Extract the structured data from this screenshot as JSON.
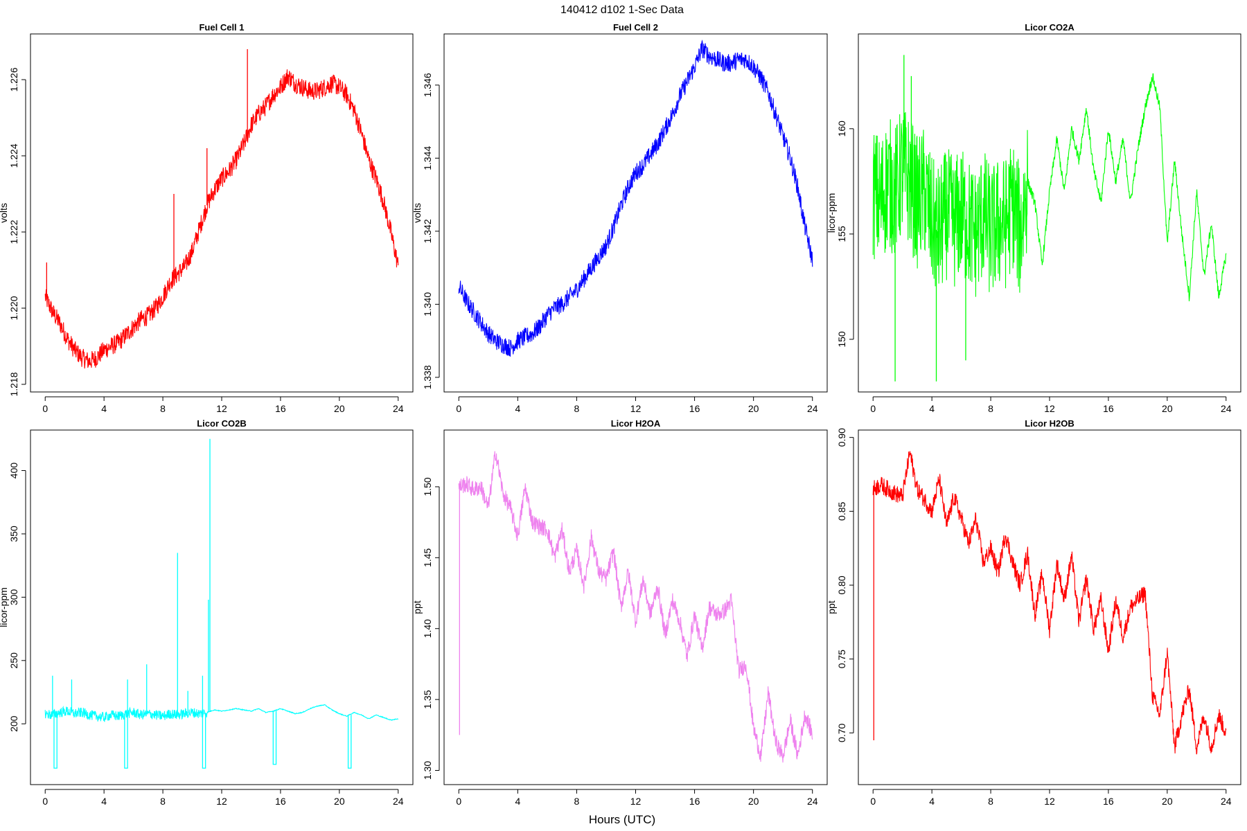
{
  "figure": {
    "title": "140412   d102   1-Sec Data",
    "xlabel": "Hours (UTC)"
  },
  "chart_data": [
    {
      "type": "line",
      "title": "Fuel Cell 1",
      "xlabel": "",
      "ylabel": "volts",
      "color": "#ff0000",
      "xlim": [
        -1,
        25
      ],
      "ylim": [
        1.2178,
        1.2272
      ],
      "x_ticks": [
        0,
        4,
        8,
        12,
        16,
        20,
        24
      ],
      "y_ticks": [
        1.218,
        1.22,
        1.222,
        1.224,
        1.226
      ],
      "y_tick_labels": [
        "1.218",
        "1.220",
        "1.222",
        "1.224",
        "1.226"
      ],
      "noise": 0.00025,
      "x": [
        0,
        0.5,
        1,
        1.5,
        2,
        2.5,
        3,
        3.5,
        4,
        4.5,
        5,
        5.5,
        6,
        6.5,
        7,
        7.5,
        8,
        8.5,
        9,
        9.5,
        10,
        10.5,
        11,
        11.5,
        12,
        12.5,
        13,
        13.5,
        14,
        14.5,
        15,
        15.5,
        16,
        16.5,
        17,
        17.5,
        18,
        18.5,
        19,
        19.5,
        20,
        20.5,
        21,
        21.5,
        22,
        22.5,
        23,
        23.5,
        24
      ],
      "y": [
        1.2203,
        1.2199,
        1.2196,
        1.2192,
        1.2189,
        1.2187,
        1.2186,
        1.2187,
        1.2189,
        1.219,
        1.2191,
        1.2193,
        1.2195,
        1.2197,
        1.2198,
        1.22,
        1.2203,
        1.2207,
        1.2209,
        1.2211,
        1.2215,
        1.2221,
        1.2227,
        1.2231,
        1.2234,
        1.2236,
        1.2239,
        1.2243,
        1.2248,
        1.2251,
        1.2253,
        1.2256,
        1.2258,
        1.2261,
        1.2259,
        1.2258,
        1.2257,
        1.2257,
        1.2258,
        1.2259,
        1.2258,
        1.2256,
        1.2252,
        1.2246,
        1.2239,
        1.2234,
        1.2228,
        1.222,
        1.2211
      ],
      "spikes": [
        [
          0.1,
          1.2212
        ],
        [
          8.75,
          1.223
        ],
        [
          11.0,
          1.2242
        ],
        [
          13.75,
          1.2268
        ]
      ]
    },
    {
      "type": "line",
      "title": "Fuel Cell 2",
      "xlabel": "",
      "ylabel": "volts",
      "color": "#0000ff",
      "xlim": [
        -1,
        25
      ],
      "ylim": [
        1.3376,
        1.3474
      ],
      "x_ticks": [
        0,
        4,
        8,
        12,
        16,
        20,
        24
      ],
      "y_ticks": [
        1.338,
        1.34,
        1.342,
        1.344,
        1.346
      ],
      "y_tick_labels": [
        "1.338",
        "1.340",
        "1.342",
        "1.344",
        "1.346"
      ],
      "noise": 0.00025,
      "x": [
        0,
        0.5,
        1,
        1.5,
        2,
        2.5,
        3,
        3.5,
        4,
        4.5,
        5,
        5.5,
        6,
        6.5,
        7,
        7.5,
        8,
        8.5,
        9,
        9.5,
        10,
        10.5,
        11,
        11.5,
        12,
        12.5,
        13,
        13.5,
        14,
        14.5,
        15,
        15.5,
        16,
        16.5,
        17,
        17.5,
        18,
        18.5,
        19,
        19.5,
        20,
        20.5,
        21,
        21.5,
        22,
        22.5,
        23,
        23.5,
        24
      ],
      "y": [
        1.3405,
        1.3401,
        1.3398,
        1.3395,
        1.3392,
        1.339,
        1.3389,
        1.3388,
        1.339,
        1.3391,
        1.3392,
        1.3394,
        1.3397,
        1.3399,
        1.34,
        1.3402,
        1.3404,
        1.3407,
        1.341,
        1.3413,
        1.3416,
        1.3421,
        1.3427,
        1.3432,
        1.3436,
        1.3438,
        1.3441,
        1.3444,
        1.3448,
        1.3452,
        1.3457,
        1.3461,
        1.3465,
        1.347,
        1.3468,
        1.3467,
        1.3466,
        1.3466,
        1.3467,
        1.3467,
        1.3465,
        1.3462,
        1.3458,
        1.3452,
        1.3446,
        1.344,
        1.3432,
        1.3421,
        1.3412
      ],
      "spikes": []
    },
    {
      "type": "line",
      "title": "Licor CO2A",
      "xlabel": "",
      "ylabel": "licor-ppm",
      "color": "#00ff00",
      "xlim": [
        -1,
        25
      ],
      "ylim": [
        147.5,
        164.5
      ],
      "x_ticks": [
        0,
        4,
        8,
        12,
        16,
        20,
        24
      ],
      "y_ticks": [
        150,
        155,
        160
      ],
      "y_tick_labels": [
        "150",
        "155",
        "160"
      ],
      "x": [
        0,
        0.5,
        1,
        1.5,
        2,
        2.5,
        3,
        3.5,
        4,
        4.5,
        5,
        5.5,
        6,
        6.5,
        7,
        7.5,
        8,
        8.5,
        9,
        9.5,
        10,
        10.5,
        11,
        11.5,
        12,
        12.5,
        13,
        13.5,
        14,
        14.5,
        15,
        15.5,
        16,
        16.5,
        17,
        17.5,
        18,
        18.5,
        19,
        19.5,
        20,
        20.5,
        21,
        21.5,
        22,
        22.5,
        23,
        23.5,
        24
      ],
      "y": [
        157.0,
        156.5,
        157.5,
        157.0,
        158.0,
        157.5,
        156.5,
        157.0,
        155.5,
        155.0,
        156.0,
        155.5,
        156.0,
        155.5,
        155.0,
        156.0,
        155.0,
        155.5,
        155.5,
        156.5,
        155.0,
        157.5,
        156.5,
        153.5,
        157.0,
        159.5,
        157.0,
        160.0,
        158.5,
        161.0,
        158.0,
        156.5,
        160.0,
        157.5,
        159.5,
        156.5,
        159.0,
        161.0,
        162.5,
        161.0,
        154.5,
        158.5,
        155.0,
        152.0,
        157.0,
        153.0,
        155.5,
        152.0,
        154.0
      ],
      "noise_until": 10.5,
      "noise_amp": 3.2,
      "noise_tail": 0.25,
      "spikes": [
        [
          2.1,
          163.5
        ],
        [
          1.5,
          148.0
        ],
        [
          4.3,
          148.0
        ],
        [
          2.6,
          162.5
        ],
        [
          6.3,
          149.0
        ]
      ]
    },
    {
      "type": "line",
      "title": "Licor CO2B",
      "xlabel": "",
      "ylabel": "licor-ppm",
      "color": "#00ffff",
      "xlim": [
        -1,
        25
      ],
      "ylim": [
        152,
        432
      ],
      "x_ticks": [
        0,
        4,
        8,
        12,
        16,
        20,
        24
      ],
      "y_ticks": [
        200,
        250,
        300,
        350,
        400
      ],
      "y_tick_labels": [
        "200",
        "250",
        "300",
        "350",
        "400"
      ],
      "x": [
        0,
        0.5,
        1,
        1.5,
        2,
        2.5,
        3,
        3.5,
        4,
        4.5,
        5,
        5.5,
        6,
        6.5,
        7,
        7.5,
        8,
        8.5,
        9,
        9.5,
        10,
        10.5,
        11,
        11.5,
        12,
        12.5,
        13,
        13.5,
        14,
        14.5,
        15,
        15.5,
        16,
        16.5,
        17,
        17.5,
        18,
        18.5,
        19,
        19.5,
        20,
        20.5,
        21,
        21.5,
        22,
        22.5,
        23,
        23.5,
        24
      ],
      "y": [
        208,
        207,
        209,
        210,
        208,
        209,
        207,
        206,
        205,
        207,
        206,
        208,
        209,
        207,
        208,
        207,
        206,
        208,
        207,
        208,
        209,
        208,
        209,
        211,
        210,
        211,
        212,
        211,
        210,
        212,
        209,
        210,
        212,
        210,
        208,
        209,
        212,
        214,
        215,
        211,
        208,
        206,
        209,
        207,
        204,
        207,
        205,
        203,
        204
      ],
      "noise_until": 11.0,
      "noise_amp": 4,
      "noise_tail": 0.3,
      "spikes": [
        [
          0.5,
          238
        ],
        [
          1.8,
          235
        ],
        [
          5.6,
          235
        ],
        [
          6.9,
          247
        ],
        [
          9.0,
          335
        ],
        [
          9.7,
          226
        ],
        [
          10.7,
          238
        ],
        [
          11.2,
          425
        ],
        [
          11.1,
          298
        ]
      ],
      "drops": [
        [
          0.7,
          165
        ],
        [
          5.5,
          165
        ],
        [
          10.8,
          165
        ],
        [
          15.6,
          168
        ],
        [
          20.7,
          165
        ]
      ]
    },
    {
      "type": "line",
      "title": "Licor H2OA",
      "xlabel": "",
      "ylabel": "ppt",
      "color": "#ee82ee",
      "xlim": [
        -1,
        25
      ],
      "ylim": [
        1.29,
        1.54
      ],
      "x_ticks": [
        0,
        4,
        8,
        12,
        16,
        20,
        24
      ],
      "y_ticks": [
        1.3,
        1.35,
        1.4,
        1.45,
        1.5
      ],
      "y_tick_labels": [
        "1.30",
        "1.35",
        "1.40",
        "1.45",
        "1.50"
      ],
      "noise": 0.006,
      "x": [
        0,
        0.5,
        1,
        1.5,
        2,
        2.5,
        3,
        3.5,
        4,
        4.5,
        5,
        5.5,
        6,
        6.5,
        7,
        7.5,
        8,
        8.5,
        9,
        9.5,
        10,
        10.5,
        11,
        11.5,
        12,
        12.5,
        13,
        13.5,
        14,
        14.5,
        15,
        15.5,
        16,
        16.5,
        17,
        17.5,
        18,
        18.5,
        19,
        19.5,
        20,
        20.5,
        21,
        21.5,
        22,
        22.5,
        23,
        23.5,
        24
      ],
      "y": [
        1.5,
        1.502,
        1.498,
        1.5,
        1.485,
        1.525,
        1.495,
        1.485,
        1.465,
        1.5,
        1.475,
        1.472,
        1.47,
        1.45,
        1.47,
        1.44,
        1.455,
        1.43,
        1.465,
        1.44,
        1.435,
        1.455,
        1.415,
        1.44,
        1.405,
        1.435,
        1.41,
        1.43,
        1.395,
        1.42,
        1.405,
        1.38,
        1.41,
        1.385,
        1.415,
        1.41,
        1.412,
        1.42,
        1.37,
        1.375,
        1.33,
        1.31,
        1.355,
        1.32,
        1.31,
        1.335,
        1.31,
        1.34,
        1.325
      ],
      "spikes": [
        [
          0.05,
          1.325
        ]
      ]
    },
    {
      "type": "line",
      "title": "Licor H2OB",
      "xlabel": "",
      "ylabel": "ppt",
      "color": "#ff0000",
      "xlim": [
        -1,
        25
      ],
      "ylim": [
        0.665,
        0.905
      ],
      "x_ticks": [
        0,
        4,
        8,
        12,
        16,
        20,
        24
      ],
      "y_ticks": [
        0.7,
        0.75,
        0.8,
        0.85,
        0.9
      ],
      "y_tick_labels": [
        "0.70",
        "0.75",
        "0.80",
        "0.85",
        "0.90"
      ],
      "noise": 0.006,
      "x": [
        0,
        0.5,
        1,
        1.5,
        2,
        2.5,
        3,
        3.5,
        4,
        4.5,
        5,
        5.5,
        6,
        6.5,
        7,
        7.5,
        8,
        8.5,
        9,
        9.5,
        10,
        10.5,
        11,
        11.5,
        12,
        12.5,
        13,
        13.5,
        14,
        14.5,
        15,
        15.5,
        16,
        16.5,
        17,
        17.5,
        18,
        18.5,
        19,
        19.5,
        20,
        20.5,
        21,
        21.5,
        22,
        22.5,
        23,
        23.5,
        24
      ],
      "y": [
        0.865,
        0.868,
        0.865,
        0.862,
        0.86,
        0.89,
        0.865,
        0.858,
        0.85,
        0.872,
        0.84,
        0.86,
        0.845,
        0.828,
        0.845,
        0.815,
        0.825,
        0.808,
        0.835,
        0.815,
        0.8,
        0.822,
        0.78,
        0.808,
        0.77,
        0.815,
        0.79,
        0.82,
        0.775,
        0.805,
        0.77,
        0.79,
        0.755,
        0.79,
        0.765,
        0.785,
        0.79,
        0.795,
        0.725,
        0.712,
        0.755,
        0.69,
        0.712,
        0.73,
        0.69,
        0.712,
        0.69,
        0.712,
        0.7
      ],
      "spikes": [
        [
          0.05,
          0.695
        ]
      ]
    }
  ]
}
